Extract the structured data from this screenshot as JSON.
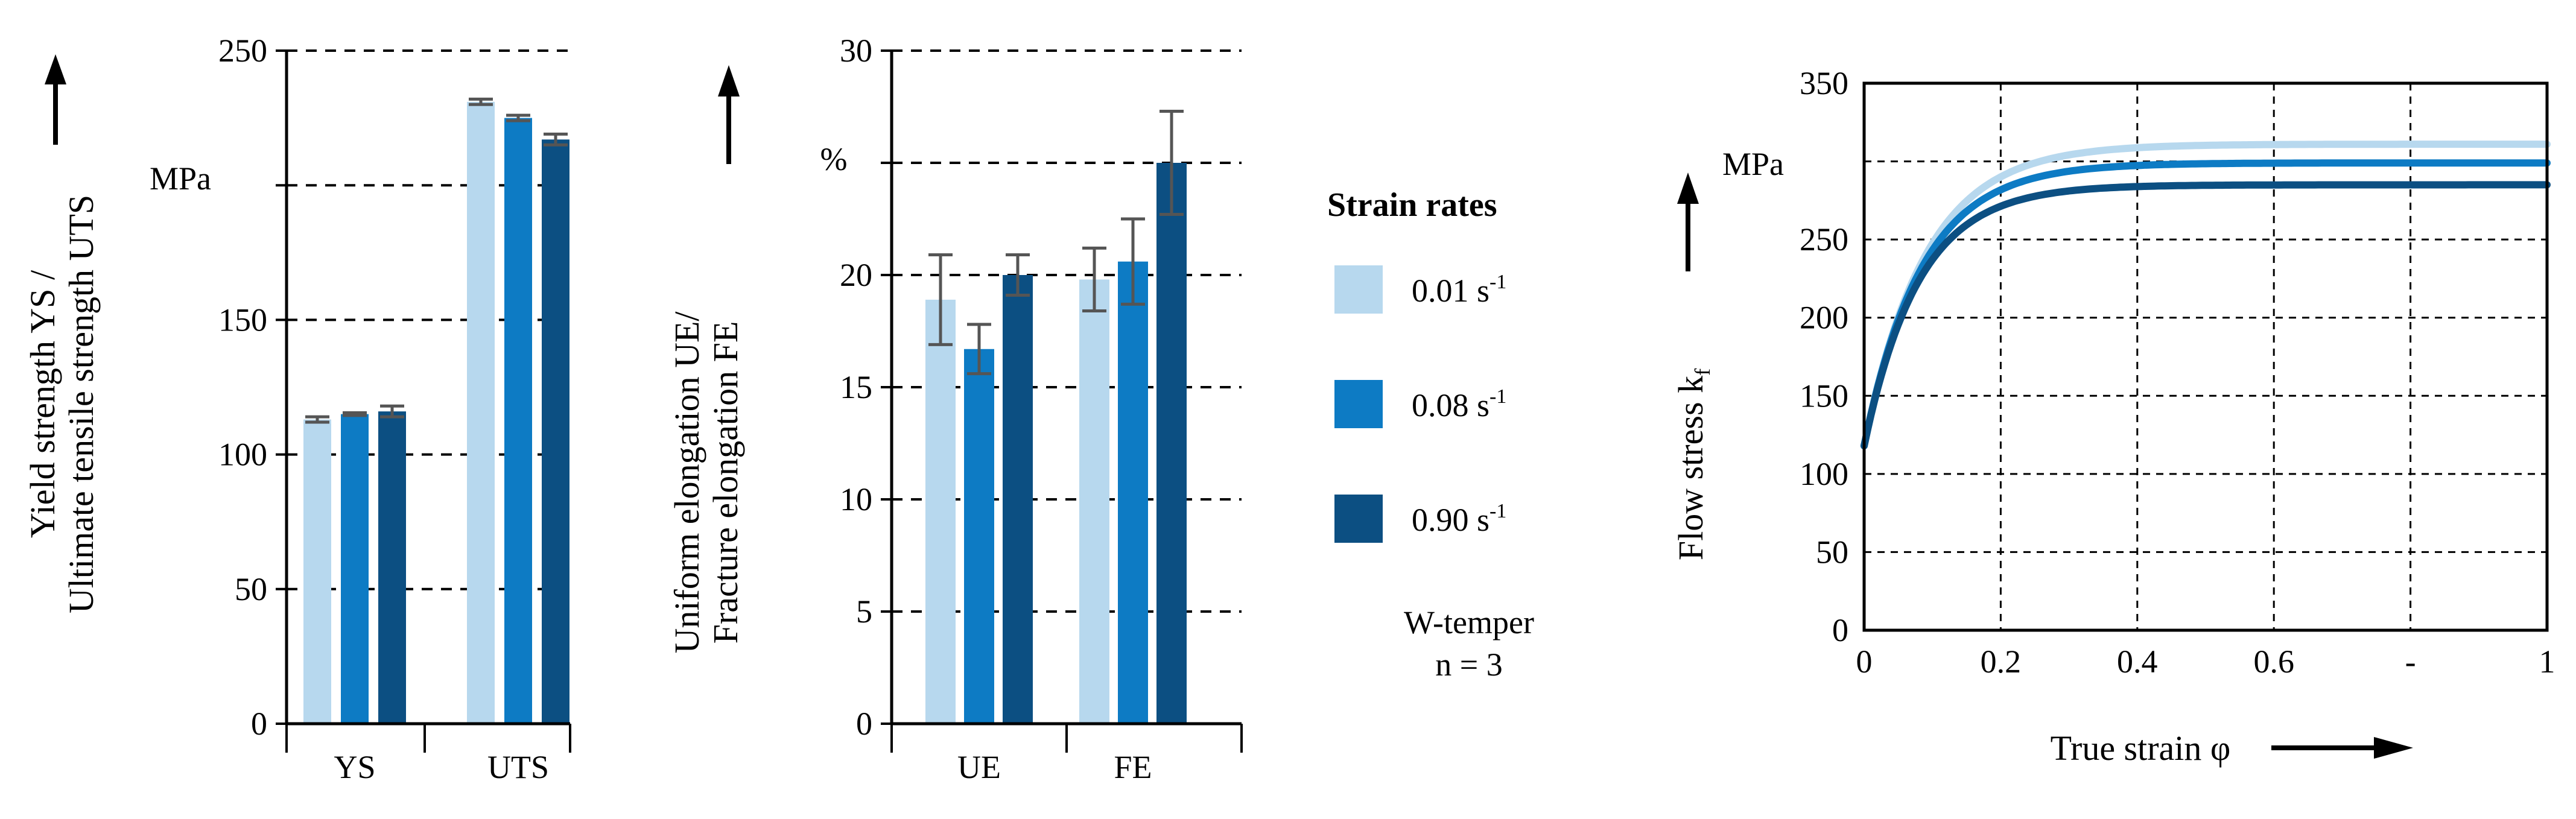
{
  "colors": {
    "light": "#b7d8ee",
    "mid": "#0d7bc4",
    "dark": "#0c4f82",
    "error_bar": "#555555",
    "grid": "#000000"
  },
  "chart_data": [
    {
      "type": "bar",
      "title": "",
      "ylabel_lines": [
        "Yield strength YS /",
        "Ultimate tensile strength UTS"
      ],
      "unit_label": "MPa",
      "categories": [
        "YS",
        "UTS"
      ],
      "ylim": [
        0,
        250
      ],
      "yticks": [
        "0",
        "50",
        "100",
        "150",
        "",
        "250"
      ],
      "series": [
        {
          "name": "0.01 s-1",
          "color_key": "light",
          "values": [
            113,
            231
          ],
          "errors": [
            1,
            1
          ]
        },
        {
          "name": "0.08 s-1",
          "color_key": "mid",
          "values": [
            115,
            225
          ],
          "errors": [
            0.5,
            1
          ]
        },
        {
          "name": "0.90 s-1",
          "color_key": "dark",
          "values": [
            116,
            217
          ],
          "errors": [
            2,
            2
          ]
        }
      ]
    },
    {
      "type": "bar",
      "title": "",
      "ylabel_lines": [
        "Uniform elongation UE/",
        "Fracture elongation FE"
      ],
      "unit_label": "%",
      "categories": [
        "UE",
        "FE"
      ],
      "ylim": [
        0,
        30
      ],
      "yticks": [
        "0",
        "5",
        "10",
        "15",
        "20",
        "",
        "30"
      ],
      "series": [
        {
          "name": "0.01 s-1",
          "color_key": "light",
          "values": [
            18.9,
            19.8
          ],
          "errors": [
            2.0,
            1.4
          ]
        },
        {
          "name": "0.08 s-1",
          "color_key": "mid",
          "values": [
            16.7,
            20.6
          ],
          "errors": [
            1.1,
            1.9
          ]
        },
        {
          "name": "0.90 s-1",
          "color_key": "dark",
          "values": [
            20.0,
            25.0
          ],
          "errors": [
            0.9,
            2.3
          ]
        }
      ]
    },
    {
      "type": "line",
      "title": "",
      "xlabel": "True strain φ",
      "ylabel_main": "Flow stress k",
      "ylabel_sub": "f",
      "unit_label": "MPa",
      "xlim": [
        0,
        1
      ],
      "ylim": [
        0,
        350
      ],
      "xticks": [
        "0",
        "0.2",
        "0.4",
        "0.6",
        "-",
        "1"
      ],
      "yticks": [
        "0",
        "50",
        "100",
        "150",
        "200",
        "250",
        "",
        "350"
      ],
      "model": "k = k0 + (ksat - k0) * (1 - exp(-phi / c))",
      "series": [
        {
          "name": "0.01 s-1",
          "color_key": "light",
          "k0": 118,
          "ksat": 311,
          "c": 0.09
        },
        {
          "name": "0.08 s-1",
          "color_key": "mid",
          "k0": 118,
          "ksat": 299,
          "c": 0.085
        },
        {
          "name": "0.90 s-1",
          "color_key": "dark",
          "k0": 118,
          "ksat": 285,
          "c": 0.08
        }
      ]
    }
  ],
  "legend": {
    "title": "Strain rates",
    "items": [
      {
        "label": "0.01 s",
        "sup": "-1",
        "color_key": "light"
      },
      {
        "label": "0.08 s",
        "sup": "-1",
        "color_key": "mid"
      },
      {
        "label": "0.90 s",
        "sup": "-1",
        "color_key": "dark"
      }
    ],
    "note_lines": [
      "W-temper",
      "n = 3"
    ]
  }
}
